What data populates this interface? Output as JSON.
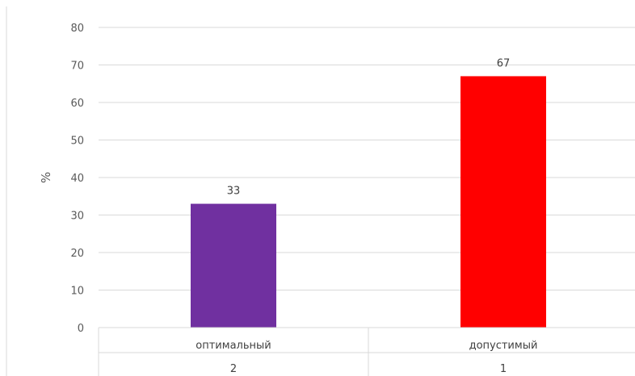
{
  "chart_data": {
    "type": "bar",
    "title": "",
    "ylabel": "%",
    "xlabel": "",
    "ylim": [
      0,
      80
    ],
    "yticks": [
      0,
      10,
      20,
      30,
      40,
      50,
      60,
      70,
      80
    ],
    "grid": true,
    "legend": "none",
    "categories": [
      "оптимальный",
      "допустимый"
    ],
    "category_codes": [
      "2",
      "1"
    ],
    "values": [
      33,
      67
    ],
    "data_labels": [
      "33",
      "67"
    ],
    "colors": [
      "#7030a0",
      "#ff0000"
    ]
  }
}
